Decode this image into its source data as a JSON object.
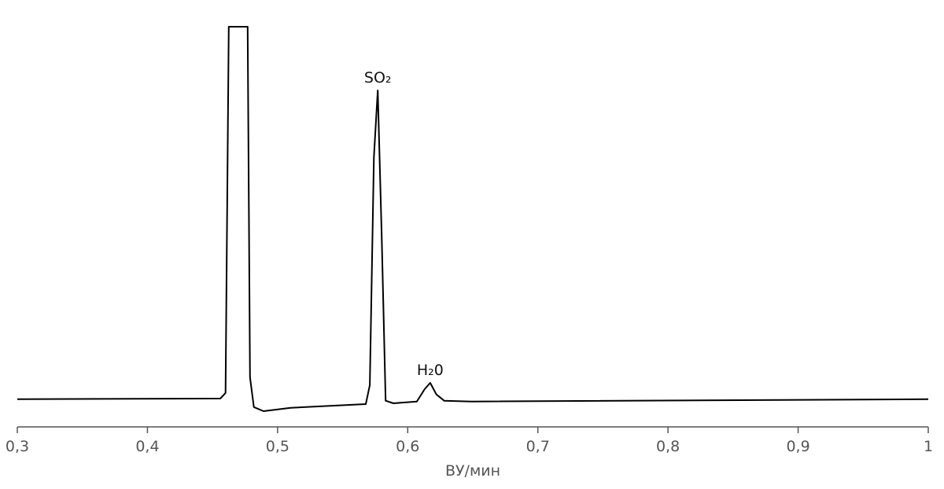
{
  "chart_data": {
    "type": "line",
    "x_label": "ВУ/мин",
    "x": [
      0.3,
      0.456,
      0.46,
      0.4625,
      0.477,
      0.4788,
      0.4818,
      0.4892,
      0.51,
      0.5678,
      0.5709,
      0.574,
      0.577,
      0.58,
      0.583,
      0.589,
      0.607,
      0.613,
      0.6173,
      0.622,
      0.628,
      0.649,
      1.0
    ],
    "values": [
      0,
      0.2,
      1.7,
      100,
      100,
      5.9,
      -2.1,
      -3.2,
      -2.3,
      -1.3,
      3.8,
      65,
      82.9,
      43.9,
      -0.4,
      -1.1,
      -0.6,
      2.7,
      4.4,
      1.3,
      -0.4,
      -0.6,
      0
    ],
    "color": "#000000",
    "xlim": [
      0.3,
      1.0
    ],
    "ylim": [
      -7,
      100
    ],
    "xticks": [
      {
        "value": 0.3,
        "label": "0,3"
      },
      {
        "value": 0.4,
        "label": "0,4"
      },
      {
        "value": 0.5,
        "label": "0,5"
      },
      {
        "value": 0.6,
        "label": "0,6"
      },
      {
        "value": 0.7,
        "label": "0,7"
      },
      {
        "value": 0.8,
        "label": "0,8"
      },
      {
        "value": 0.9,
        "label": "0,9"
      },
      1
    ],
    "annotations": [
      {
        "text": "SO₂",
        "x": 0.577
      },
      {
        "text": "H₂0",
        "x": 0.6173
      }
    ]
  }
}
